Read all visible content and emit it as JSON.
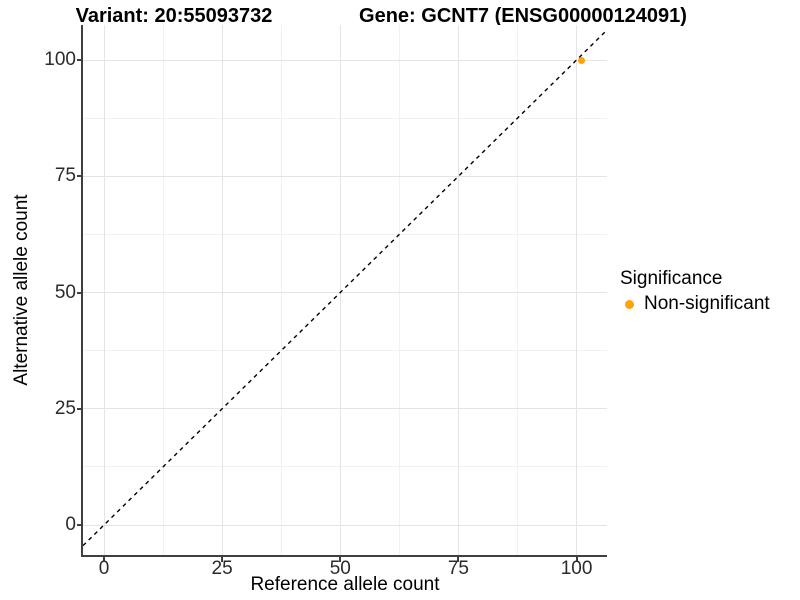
{
  "chart_data": {
    "type": "scatter",
    "title_variant": "Variant: 20:55093732",
    "title_gene": "Gene: GCNT7 (ENSG00000124091)",
    "xlabel": "Reference allele count",
    "ylabel": "Alternative allele count",
    "x_ticks": [
      0,
      25,
      50,
      75,
      100
    ],
    "y_ticks": [
      0,
      25,
      50,
      75,
      100
    ],
    "xlim": [
      -4.4,
      106.3
    ],
    "ylim": [
      -6.5,
      107.5
    ],
    "grid": "major and minor light-gray gridlines on white background",
    "reference_line": {
      "equation": "y = x",
      "style": "dashed",
      "color": "#000000"
    },
    "series": [
      {
        "name": "Non-significant",
        "color": "#FFA203",
        "points": [
          {
            "x": 101,
            "y": 100
          }
        ]
      }
    ],
    "legend": {
      "title": "Significance",
      "position": "right",
      "items": [
        {
          "label": "Non-significant",
          "color": "#FFA203"
        }
      ]
    }
  },
  "colors": {
    "background": "#FFFFFF",
    "grid_major": "#E4E4E4",
    "grid_minor": "#F1F1F1",
    "axis_line": "#3F3F3F",
    "tick_text": "#2B2B2B",
    "point_orange": "#FFA203"
  }
}
